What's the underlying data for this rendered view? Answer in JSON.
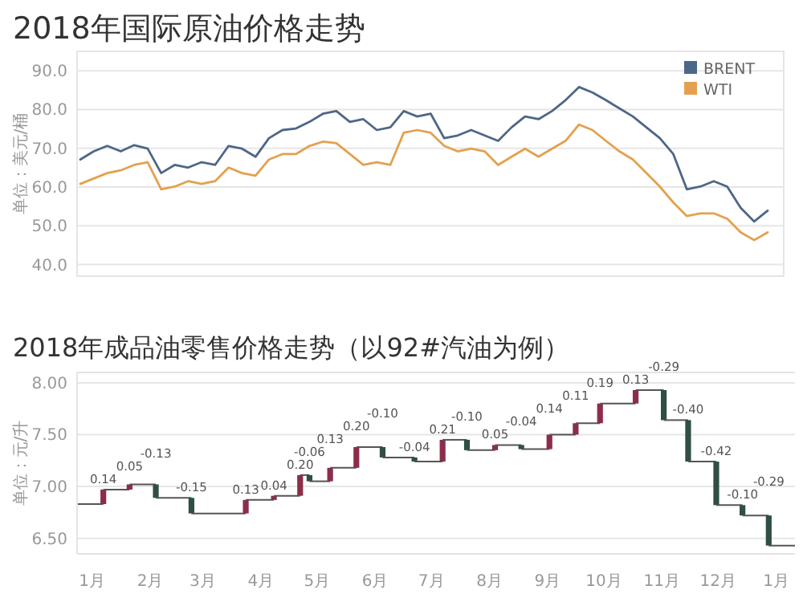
{
  "chart_data": [
    {
      "type": "line",
      "title": "2018年国际原油价格走势",
      "ylabel": "单位：美元/桶",
      "categories": [
        null,
        null,
        null,
        null,
        null,
        null,
        null,
        null,
        null,
        null,
        null,
        null,
        null,
        null,
        null,
        null,
        null,
        null,
        null,
        null,
        null,
        null,
        null,
        null,
        null,
        null,
        null,
        null,
        null,
        null,
        null,
        null,
        null,
        null,
        null,
        null,
        null,
        null,
        null,
        null,
        null,
        null,
        null,
        null,
        null,
        null,
        null,
        null,
        null,
        null,
        null,
        null
      ],
      "series": [
        {
          "name": "BRENT",
          "color": "#4d6787",
          "values": [
            67.1,
            69.2,
            70.6,
            69.2,
            70.8,
            69.9,
            63.6,
            65.7,
            65.0,
            66.4,
            65.7,
            70.6,
            69.9,
            67.8,
            72.6,
            74.7,
            75.1,
            76.8,
            78.9,
            79.6,
            76.8,
            77.5,
            74.7,
            75.4,
            79.6,
            78.2,
            78.9,
            72.6,
            73.3,
            74.7,
            73.3,
            71.9,
            75.4,
            78.2,
            77.5,
            79.6,
            82.4,
            85.8,
            84.4,
            82.4,
            80.3,
            78.2,
            75.4,
            72.6,
            68.5,
            59.4,
            60.1,
            61.5,
            60.1,
            54.6,
            51.1,
            53.9
          ]
        },
        {
          "name": "WTI",
          "color": "#e3a14f",
          "values": [
            60.8,
            62.2,
            63.6,
            64.3,
            65.7,
            66.4,
            59.4,
            60.1,
            61.5,
            60.8,
            61.5,
            65.0,
            63.6,
            62.9,
            67.1,
            68.5,
            68.5,
            70.6,
            71.7,
            71.3,
            68.5,
            65.7,
            66.4,
            65.7,
            74.0,
            74.7,
            74.0,
            70.6,
            69.2,
            69.9,
            69.2,
            65.7,
            67.8,
            69.9,
            67.8,
            69.9,
            71.9,
            76.1,
            74.7,
            71.9,
            69.2,
            67.1,
            63.6,
            60.1,
            56.0,
            52.5,
            53.2,
            53.2,
            51.8,
            48.3,
            46.3,
            48.3
          ]
        }
      ],
      "ylim": [
        37,
        95
      ],
      "yticks": [
        {
          "value": 40,
          "label": "40.0"
        },
        {
          "value": 50,
          "label": "50.0"
        },
        {
          "value": 60,
          "label": "60.0"
        },
        {
          "value": 70,
          "label": "70.0"
        },
        {
          "value": 80,
          "label": "80.0"
        },
        {
          "value": 90,
          "label": "90.0"
        }
      ],
      "grid": "y",
      "legend": "top right"
    },
    {
      "type": "bar",
      "title": "2018年成品油零售价格走势（以92#汽油为例）",
      "ylabel": "单位：元/升",
      "x": [
        "2018-01-07",
        "2018-01-21",
        "2018-02-04",
        "2018-02-23",
        "2018-03-24",
        "2018-04-08",
        "2018-04-22",
        "2018-04-27",
        "2018-05-08",
        "2018-05-22",
        "2018-06-05",
        "2018-06-22",
        "2018-07-07",
        "2018-07-20",
        "2018-08-04",
        "2018-08-18",
        "2018-09-02",
        "2018-09-16",
        "2018-09-29",
        "2018-10-18",
        "2018-11-02",
        "2018-11-15",
        "2018-11-30",
        "2018-12-14",
        "2018-12-28"
      ],
      "base": [
        6.83,
        6.97,
        7.02,
        6.89,
        6.74,
        6.87,
        6.91,
        7.11,
        7.05,
        7.18,
        7.38,
        7.28,
        7.24,
        7.45,
        7.35,
        7.4,
        7.36,
        7.5,
        7.61,
        7.8,
        7.93,
        7.64,
        7.24,
        6.82,
        6.72
      ],
      "values": [
        0.14,
        0.05,
        -0.13,
        -0.15,
        0.13,
        0.04,
        0.2,
        -0.06,
        0.13,
        0.2,
        -0.1,
        -0.04,
        0.21,
        -0.1,
        0.05,
        -0.04,
        0.14,
        0.11,
        0.19,
        0.13,
        -0.29,
        -0.4,
        -0.42,
        -0.1,
        -0.29
      ],
      "value_labels": [
        "0.14",
        "0.05",
        "-0.13",
        "-0.15",
        "0.13",
        "0.04",
        "0.20",
        "-0.06",
        "0.13",
        "0.20",
        "-0.10",
        "-0.04",
        "0.21",
        "-0.10",
        "0.05",
        "-0.04",
        "0.14",
        "0.11",
        "0.19",
        "0.13",
        "-0.29",
        "-0.40",
        "-0.42",
        "-0.10",
        "-0.29"
      ],
      "colors": [
        "#8c2d4a",
        "#8c2d4a",
        "#2f4f42",
        "#2f4f42",
        "#8c2d4a",
        "#8c2d4a",
        "#8c2d4a",
        "#2f4f42",
        "#8c2d4a",
        "#8c2d4a",
        "#2f4f42",
        "#2f4f42",
        "#8c2d4a",
        "#2f4f42",
        "#8c2d4a",
        "#2f4f42",
        "#8c2d4a",
        "#8c2d4a",
        "#8c2d4a",
        "#8c2d4a",
        "#2f4f42",
        "#2f4f42",
        "#2f4f42",
        "#2f4f42",
        "#2f4f42"
      ],
      "xlim": [
        "2017-12-24",
        "2019-01-11"
      ],
      "xticks": [
        {
          "value": "2018-01-01",
          "label": "1月"
        },
        {
          "value": "2018-02-01",
          "label": "2月"
        },
        {
          "value": "2018-03-01",
          "label": "3月"
        },
        {
          "value": "2018-04-01",
          "label": "4月"
        },
        {
          "value": "2018-05-01",
          "label": "5月"
        },
        {
          "value": "2018-06-01",
          "label": "6月"
        },
        {
          "value": "2018-07-01",
          "label": "7月"
        },
        {
          "value": "2018-08-01",
          "label": "8月"
        },
        {
          "value": "2018-09-01",
          "label": "9月"
        },
        {
          "value": "2018-10-01",
          "label": "10月"
        },
        {
          "value": "2018-11-01",
          "label": "11月"
        },
        {
          "value": "2018-12-01",
          "label": "12月"
        },
        {
          "value": "2019-01-01",
          "label": "1月"
        }
      ],
      "ylim": [
        6.35,
        8.1
      ],
      "yticks": [
        {
          "value": 6.5,
          "label": "6.50"
        },
        {
          "value": 7.0,
          "label": "7.00"
        },
        {
          "value": 7.5,
          "label": "7.50"
        },
        {
          "value": 8.0,
          "label": "8.00"
        }
      ],
      "grid": "y"
    }
  ]
}
